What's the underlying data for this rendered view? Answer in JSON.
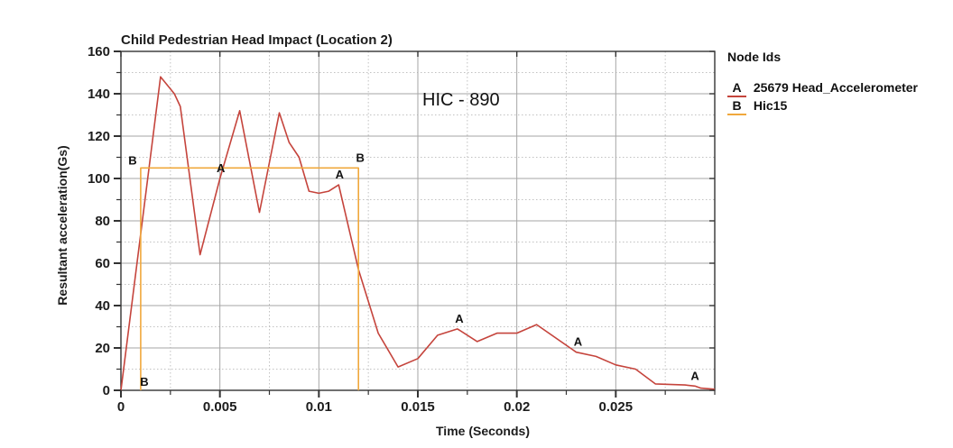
{
  "legend": {
    "header": "Node Ids",
    "entries": [
      {
        "key": "A",
        "label": "25679 Head_Accelerometer",
        "color": "#c5443c"
      },
      {
        "key": "B",
        "label": "Hic15",
        "color": "#f0a83c"
      }
    ]
  },
  "colors": {
    "series_a": "#c5443c",
    "series_b": "#f0a83c",
    "grid_major": "#a6a6a6",
    "grid_minor": "#c2c2c2",
    "axis": "#333333",
    "text": "#1c1c1c"
  },
  "chart_data": {
    "type": "line",
    "title": "Child Pedestrian Head Impact (Location 2)",
    "xlabel": "Time (Seconds)",
    "ylabel": "Resultant acceleration(Gs)",
    "xlim": [
      0,
      0.03
    ],
    "ylim": [
      0,
      160
    ],
    "x_ticks": [
      0,
      0.005,
      0.01,
      0.015,
      0.02,
      0.025
    ],
    "x_tick_labels": [
      "0",
      "0.005",
      "0.01",
      "0.015",
      "0.02",
      "0.025"
    ],
    "y_ticks": [
      0,
      20,
      40,
      60,
      80,
      100,
      120,
      140,
      160
    ],
    "y_tick_labels": [
      "0",
      "20",
      "40",
      "60",
      "80",
      "100",
      "120",
      "140",
      "160"
    ],
    "x_minor_step": 0.0025,
    "y_minor_step": 10,
    "grid": "major solid, minor dotted",
    "legend_position": "right-outside",
    "annotations": [
      {
        "text": "HIC - 890",
        "x": 0.0152,
        "y": 140
      }
    ],
    "series": [
      {
        "name": "25679 Head_Accelerometer",
        "key": "A",
        "color": "#c5443c",
        "points": [
          [
            0,
            0
          ],
          [
            0.002,
            148
          ],
          [
            0.0027,
            140
          ],
          [
            0.003,
            134
          ],
          [
            0.004,
            64
          ],
          [
            0.005,
            100
          ],
          [
            0.006,
            132
          ],
          [
            0.007,
            84
          ],
          [
            0.008,
            131
          ],
          [
            0.0085,
            117
          ],
          [
            0.009,
            110
          ],
          [
            0.0095,
            94
          ],
          [
            0.01,
            93
          ],
          [
            0.0105,
            94
          ],
          [
            0.011,
            97
          ],
          [
            0.012,
            57
          ],
          [
            0.013,
            27
          ],
          [
            0.014,
            11
          ],
          [
            0.015,
            15
          ],
          [
            0.016,
            26
          ],
          [
            0.017,
            29
          ],
          [
            0.018,
            23
          ],
          [
            0.019,
            27
          ],
          [
            0.02,
            27
          ],
          [
            0.021,
            31
          ],
          [
            0.023,
            18
          ],
          [
            0.024,
            16
          ],
          [
            0.025,
            12
          ],
          [
            0.026,
            10
          ],
          [
            0.027,
            3
          ],
          [
            0.0285,
            2.5
          ],
          [
            0.029,
            2
          ],
          [
            0.0293,
            1
          ],
          [
            0.03,
            0.5
          ]
        ],
        "markers": [
          {
            "t": 0.005,
            "v": 100,
            "dx": 1,
            "dy": -7
          },
          {
            "t": 0.011,
            "v": 97,
            "dx": 1,
            "dy": -7
          },
          {
            "t": 0.017,
            "v": 29,
            "dx": 2,
            "dy": -7
          },
          {
            "t": 0.023,
            "v": 18,
            "dx": 2,
            "dy": -7
          },
          {
            "t": 0.029,
            "v": 2,
            "dx": 0,
            "dy": -7
          }
        ]
      },
      {
        "name": "Hic15",
        "key": "B",
        "color": "#f0a83c",
        "points": [
          [
            0.001,
            0
          ],
          [
            0.001,
            105
          ],
          [
            0.012,
            105
          ],
          [
            0.012,
            0
          ]
        ],
        "markers": [
          {
            "t": 0.001,
            "v": 105,
            "dx": -9,
            "dy": -4
          },
          {
            "t": 0.012,
            "v": 105,
            "dx": 2,
            "dy": -7
          },
          {
            "t": 0.001,
            "v": 0,
            "dx": 4,
            "dy": -5
          }
        ]
      }
    ]
  }
}
